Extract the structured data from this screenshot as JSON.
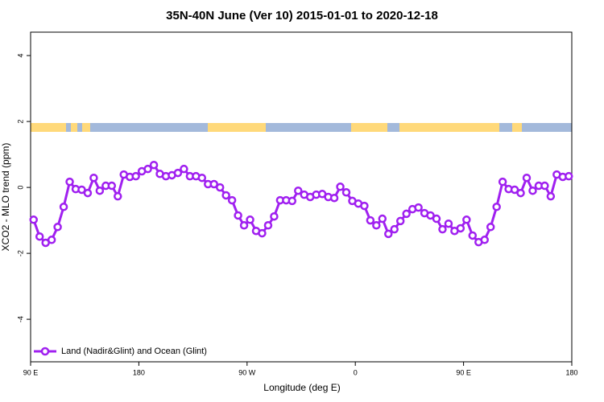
{
  "chart_data": {
    "type": "line",
    "title": "35N-40N June (Ver 10)   2015-01-01 to 2020-12-18",
    "x_label": "Longitude (deg E)",
    "y_label": "XCO2 - MLO trend (ppm)",
    "x": [
      92.5,
      97.5,
      102.5,
      107.5,
      112.5,
      117.5,
      122.5,
      127.5,
      132.5,
      137.5,
      142.5,
      147.5,
      152.5,
      157.5,
      162.5,
      167.5,
      172.5,
      177.5,
      182.5,
      187.5,
      192.5,
      197.5,
      202.5,
      207.5,
      212.5,
      217.5,
      222.5,
      227.5,
      232.5,
      237.5,
      242.5,
      247.5,
      252.5,
      257.5,
      262.5,
      267.5,
      272.5,
      277.5,
      282.5,
      287.5,
      292.5,
      297.5,
      302.5,
      307.5,
      312.5,
      317.5,
      322.5,
      327.5,
      332.5,
      337.5,
      342.5,
      347.5,
      352.5,
      357.5,
      362.5,
      367.5,
      372.5,
      377.5,
      382.5,
      387.5,
      392.5,
      397.5,
      402.5,
      407.5,
      412.5,
      417.5,
      422.5,
      427.5,
      432.5,
      437.5,
      442.5,
      447.5,
      452.5,
      457.5,
      462.5,
      467.5,
      472.5,
      477.5,
      482.5,
      487.5,
      492.5,
      497.5,
      502.5,
      507.5,
      512.5,
      517.5,
      522.5,
      527.5,
      532.5,
      537.5
    ],
    "series": [
      {
        "name": "Land (Nadir&Glint) and Ocean (Glint)",
        "color": "#a020f0",
        "values": [
          -0.98,
          -1.49,
          -1.68,
          -1.59,
          -1.2,
          -0.59,
          0.17,
          -0.05,
          -0.07,
          -0.17,
          0.29,
          -0.1,
          0.05,
          0.05,
          -0.27,
          0.39,
          0.32,
          0.34,
          0.49,
          0.56,
          0.68,
          0.41,
          0.34,
          0.37,
          0.44,
          0.56,
          0.34,
          0.34,
          0.29,
          0.1,
          0.1,
          0,
          -0.24,
          -0.39,
          -0.85,
          -1.15,
          -0.98,
          -1.32,
          -1.39,
          -1.15,
          -0.88,
          -0.39,
          -0.39,
          -0.41,
          -0.1,
          -0.22,
          -0.29,
          -0.22,
          -0.2,
          -0.29,
          -0.32,
          0.02,
          -0.15,
          -0.41,
          -0.49,
          -0.56,
          -1.0,
          -1.15,
          -0.95,
          -1.41,
          -1.27,
          -1.02,
          -0.8,
          -0.66,
          -0.61,
          -0.78,
          -0.85,
          -0.95,
          -1.27,
          -1.1,
          -1.32,
          -1.24,
          -0.98,
          -1.46,
          -1.66,
          -1.59,
          -1.2,
          -0.59,
          0.17,
          -0.05,
          -0.07,
          -0.17,
          0.29,
          -0.1,
          0.05,
          0.05,
          -0.27,
          0.39,
          0.32,
          0.34
        ]
      }
    ],
    "xlim": [
      90,
      540
    ],
    "xticks": [
      {
        "value": 90,
        "label": "90 E"
      },
      180,
      {
        "value": 270,
        "label": "90 W"
      },
      {
        "value": 360,
        "label": "0"
      },
      {
        "value": 450,
        "label": "90 E"
      },
      {
        "value": 540,
        "label": "180"
      }
    ],
    "ylim": [
      -5.29,
      4.71
    ],
    "yticks": [
      -4,
      -2,
      0,
      2,
      4
    ],
    "legend": "bottom-left"
  }
}
